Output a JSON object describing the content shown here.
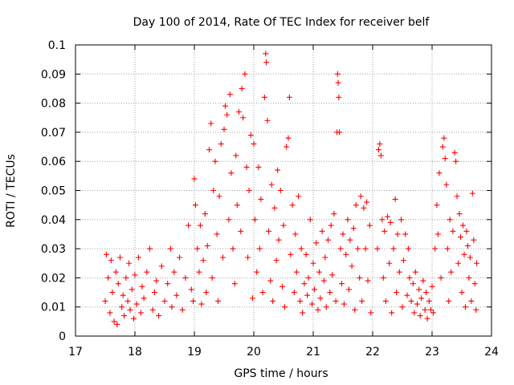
{
  "chart_data": {
    "type": "scatter",
    "title": "Day 100 of 2014, Rate Of TEC Index for receiver belf",
    "xlabel": "GPS time / hours",
    "ylabel": "ROTI / TECUs",
    "xlim": [
      17,
      24
    ],
    "ylim": [
      0,
      0.1
    ],
    "xticks": [
      17,
      18,
      19,
      20,
      21,
      22,
      23,
      24
    ],
    "xtick_labels": [
      "17",
      "18",
      "19",
      "20",
      "21",
      "22",
      "23",
      "24"
    ],
    "yticks": [
      0,
      0.01,
      0.02,
      0.03,
      0.04,
      0.05,
      0.06,
      0.07,
      0.08,
      0.09,
      0.1
    ],
    "ytick_labels": [
      "0",
      "0.01",
      "0.02",
      "0.03",
      "0.04",
      "0.05",
      "0.06",
      "0.07",
      "0.08",
      "0.09",
      "0.1"
    ],
    "grid": true,
    "marker": "+",
    "color": "#ff0000",
    "series": [
      {
        "name": "ROTI",
        "points": [
          [
            17.5,
            0.012
          ],
          [
            17.52,
            0.028
          ],
          [
            17.55,
            0.02
          ],
          [
            17.58,
            0.008
          ],
          [
            17.6,
            0.026
          ],
          [
            17.62,
            0.015
          ],
          [
            17.65,
            0.005
          ],
          [
            17.68,
            0.022
          ],
          [
            17.7,
            0.004
          ],
          [
            17.72,
            0.018
          ],
          [
            17.75,
            0.027
          ],
          [
            17.78,
            0.01
          ],
          [
            17.8,
            0.014
          ],
          [
            17.82,
            0.007
          ],
          [
            17.85,
            0.02
          ],
          [
            17.88,
            0.012
          ],
          [
            17.9,
            0.025
          ],
          [
            17.92,
            0.009
          ],
          [
            17.95,
            0.016
          ],
          [
            17.98,
            0.006
          ],
          [
            18.0,
            0.021
          ],
          [
            18.03,
            0.011
          ],
          [
            18.06,
            0.027
          ],
          [
            18.1,
            0.008
          ],
          [
            18.12,
            0.017
          ],
          [
            18.15,
            0.013
          ],
          [
            18.2,
            0.022
          ],
          [
            18.25,
            0.03
          ],
          [
            18.3,
            0.009
          ],
          [
            18.33,
            0.015
          ],
          [
            18.36,
            0.019
          ],
          [
            18.4,
            0.007
          ],
          [
            18.45,
            0.024
          ],
          [
            18.5,
            0.012
          ],
          [
            18.55,
            0.018
          ],
          [
            18.6,
            0.03
          ],
          [
            18.62,
            0.01
          ],
          [
            18.66,
            0.022
          ],
          [
            18.7,
            0.014
          ],
          [
            18.75,
            0.027
          ],
          [
            18.8,
            0.009
          ],
          [
            18.85,
            0.02
          ],
          [
            18.9,
            0.038
          ],
          [
            18.95,
            0.016
          ],
          [
            18.98,
            0.012
          ],
          [
            19.0,
            0.054
          ],
          [
            19.02,
            0.045
          ],
          [
            19.05,
            0.03
          ],
          [
            19.08,
            0.022
          ],
          [
            19.1,
            0.038
          ],
          [
            19.12,
            0.011
          ],
          [
            19.15,
            0.026
          ],
          [
            19.18,
            0.042
          ],
          [
            19.2,
            0.015
          ],
          [
            19.22,
            0.031
          ],
          [
            19.25,
            0.064
          ],
          [
            19.28,
            0.073
          ],
          [
            19.3,
            0.02
          ],
          [
            19.32,
            0.05
          ],
          [
            19.35,
            0.06
          ],
          [
            19.38,
            0.035
          ],
          [
            19.4,
            0.012
          ],
          [
            19.42,
            0.048
          ],
          [
            19.45,
            0.066
          ],
          [
            19.48,
            0.027
          ],
          [
            19.5,
            0.071
          ],
          [
            19.52,
            0.079
          ],
          [
            19.55,
            0.076
          ],
          [
            19.58,
            0.04
          ],
          [
            19.6,
            0.083
          ],
          [
            19.62,
            0.056
          ],
          [
            19.65,
            0.03
          ],
          [
            19.68,
            0.018
          ],
          [
            19.7,
            0.062
          ],
          [
            19.72,
            0.045
          ],
          [
            19.75,
            0.077
          ],
          [
            19.78,
            0.036
          ],
          [
            19.8,
            0.085
          ],
          [
            19.82,
            0.075
          ],
          [
            19.85,
            0.09
          ],
          [
            19.88,
            0.058
          ],
          [
            19.9,
            0.027
          ],
          [
            19.92,
            0.05
          ],
          [
            19.95,
            0.069
          ],
          [
            19.98,
            0.013
          ],
          [
            20.0,
            0.066
          ],
          [
            20.02,
            0.04
          ],
          [
            20.05,
            0.022
          ],
          [
            20.08,
            0.058
          ],
          [
            20.1,
            0.03
          ],
          [
            20.12,
            0.047
          ],
          [
            20.15,
            0.015
          ],
          [
            20.18,
            0.082
          ],
          [
            20.2,
            0.097
          ],
          [
            20.21,
            0.094
          ],
          [
            20.23,
            0.074
          ],
          [
            20.25,
            0.036
          ],
          [
            20.28,
            0.019
          ],
          [
            20.3,
            0.052
          ],
          [
            20.32,
            0.012
          ],
          [
            20.35,
            0.044
          ],
          [
            20.38,
            0.026
          ],
          [
            20.4,
            0.057
          ],
          [
            20.42,
            0.033
          ],
          [
            20.45,
            0.05
          ],
          [
            20.48,
            0.017
          ],
          [
            20.5,
            0.038
          ],
          [
            20.52,
            0.01
          ],
          [
            20.55,
            0.065
          ],
          [
            20.58,
            0.068
          ],
          [
            20.6,
            0.082
          ],
          [
            20.62,
            0.028
          ],
          [
            20.65,
            0.045
          ],
          [
            20.68,
            0.015
          ],
          [
            20.7,
            0.035
          ],
          [
            20.72,
            0.022
          ],
          [
            20.75,
            0.048
          ],
          [
            20.78,
            0.012
          ],
          [
            20.8,
            0.03
          ],
          [
            20.82,
            0.008
          ],
          [
            20.85,
            0.018
          ],
          [
            20.88,
            0.028
          ],
          [
            20.9,
            0.014
          ],
          [
            20.92,
            0.02
          ],
          [
            20.95,
            0.04
          ],
          [
            20.98,
            0.011
          ],
          [
            21.0,
            0.025
          ],
          [
            21.02,
            0.016
          ],
          [
            21.05,
            0.032
          ],
          [
            21.08,
            0.009
          ],
          [
            21.1,
            0.022
          ],
          [
            21.12,
            0.013
          ],
          [
            21.15,
            0.036
          ],
          [
            21.18,
            0.019
          ],
          [
            21.2,
            0.027
          ],
          [
            21.22,
            0.01
          ],
          [
            21.25,
            0.033
          ],
          [
            21.28,
            0.015
          ],
          [
            21.3,
            0.038
          ],
          [
            21.32,
            0.021
          ],
          [
            21.35,
            0.042
          ],
          [
            21.38,
            0.012
          ],
          [
            21.4,
            0.07
          ],
          [
            21.41,
            0.09
          ],
          [
            21.42,
            0.087
          ],
          [
            21.43,
            0.082
          ],
          [
            21.44,
            0.07
          ],
          [
            21.46,
            0.03
          ],
          [
            21.48,
            0.018
          ],
          [
            21.5,
            0.035
          ],
          [
            21.52,
            0.011
          ],
          [
            21.55,
            0.028
          ],
          [
            21.58,
            0.04
          ],
          [
            21.6,
            0.016
          ],
          [
            21.62,
            0.033
          ],
          [
            21.65,
            0.024
          ],
          [
            21.68,
            0.037
          ],
          [
            21.7,
            0.009
          ],
          [
            21.72,
            0.045
          ],
          [
            21.75,
            0.03
          ],
          [
            21.78,
            0.02
          ],
          [
            21.8,
            0.048
          ],
          [
            21.82,
            0.012
          ],
          [
            21.85,
            0.044
          ],
          [
            21.88,
            0.03
          ],
          [
            21.9,
            0.046
          ],
          [
            21.92,
            0.019
          ],
          [
            21.95,
            0.038
          ],
          [
            21.97,
            0.008
          ],
          [
            22.08,
            0.03
          ],
          [
            22.1,
            0.064
          ],
          [
            22.12,
            0.066
          ],
          [
            22.14,
            0.062
          ],
          [
            22.16,
            0.04
          ],
          [
            22.18,
            0.02
          ],
          [
            22.2,
            0.036
          ],
          [
            22.22,
            0.012
          ],
          [
            22.25,
            0.041
          ],
          [
            22.28,
            0.025
          ],
          [
            22.3,
            0.039
          ],
          [
            22.32,
            0.008
          ],
          [
            22.35,
            0.03
          ],
          [
            22.38,
            0.047
          ],
          [
            22.4,
            0.015
          ],
          [
            22.42,
            0.035
          ],
          [
            22.45,
            0.022
          ],
          [
            22.48,
            0.04
          ],
          [
            22.5,
            0.01
          ],
          [
            22.52,
            0.026
          ],
          [
            22.55,
            0.035
          ],
          [
            22.58,
            0.014
          ],
          [
            22.6,
            0.03
          ],
          [
            22.62,
            0.02
          ],
          [
            22.65,
            0.012
          ],
          [
            22.68,
            0.018
          ],
          [
            22.7,
            0.008
          ],
          [
            22.72,
            0.022
          ],
          [
            22.75,
            0.011
          ],
          [
            22.78,
            0.016
          ],
          [
            22.8,
            0.007
          ],
          [
            22.82,
            0.013
          ],
          [
            22.85,
            0.019
          ],
          [
            22.88,
            0.009
          ],
          [
            22.9,
            0.015
          ],
          [
            22.92,
            0.006
          ],
          [
            22.95,
            0.012
          ],
          [
            22.98,
            0.009
          ],
          [
            23.0,
            0.017
          ],
          [
            23.02,
            0.008
          ],
          [
            23.05,
            0.03
          ],
          [
            23.08,
            0.045
          ],
          [
            23.1,
            0.035
          ],
          [
            23.12,
            0.056
          ],
          [
            23.15,
            0.02
          ],
          [
            23.18,
            0.065
          ],
          [
            23.2,
            0.068
          ],
          [
            23.22,
            0.061
          ],
          [
            23.24,
            0.052
          ],
          [
            23.26,
            0.03
          ],
          [
            23.28,
            0.012
          ],
          [
            23.3,
            0.04
          ],
          [
            23.32,
            0.022
          ],
          [
            23.35,
            0.036
          ],
          [
            23.38,
            0.063
          ],
          [
            23.4,
            0.06
          ],
          [
            23.42,
            0.048
          ],
          [
            23.44,
            0.025
          ],
          [
            23.46,
            0.042
          ],
          [
            23.48,
            0.034
          ],
          [
            23.5,
            0.015
          ],
          [
            23.52,
            0.038
          ],
          [
            23.54,
            0.028
          ],
          [
            23.56,
            0.01
          ],
          [
            23.58,
            0.036
          ],
          [
            23.6,
            0.031
          ],
          [
            23.62,
            0.02
          ],
          [
            23.64,
            0.027
          ],
          [
            23.66,
            0.012
          ],
          [
            23.68,
            0.049
          ],
          [
            23.7,
            0.033
          ],
          [
            23.72,
            0.018
          ],
          [
            23.74,
            0.009
          ],
          [
            23.75,
            0.025
          ]
        ]
      }
    ]
  }
}
